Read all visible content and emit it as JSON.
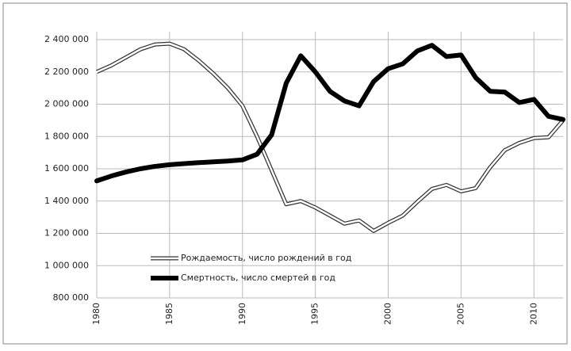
{
  "chart_data": {
    "type": "line",
    "x": [
      1980,
      1981,
      1982,
      1983,
      1984,
      1985,
      1986,
      1987,
      1988,
      1989,
      1990,
      1991,
      1992,
      1993,
      1994,
      1995,
      1996,
      1997,
      1998,
      1999,
      2000,
      2001,
      2002,
      2003,
      2004,
      2005,
      2006,
      2007,
      2008,
      2009,
      2010,
      2011,
      2012
    ],
    "series": [
      {
        "name": "Рождаемость, число рождений в год",
        "color": "#ffffff",
        "values": [
          2200000,
          2240000,
          2290000,
          2340000,
          2370000,
          2375000,
          2340000,
          2270000,
          2190000,
          2100000,
          1990000,
          1800000,
          1590000,
          1380000,
          1400000,
          1360000,
          1310000,
          1260000,
          1280000,
          1215000,
          1265000,
          1310000,
          1395000,
          1475000,
          1500000,
          1460000,
          1480000,
          1610000,
          1715000,
          1760000,
          1790000,
          1795000,
          1900000
        ]
      },
      {
        "name": "Смертность, число смертей в год",
        "color": "#000000",
        "values": [
          1525000,
          1555000,
          1580000,
          1600000,
          1615000,
          1625000,
          1632000,
          1638000,
          1643000,
          1648000,
          1655000,
          1690000,
          1810000,
          2130000,
          2300000,
          2200000,
          2080000,
          2020000,
          1990000,
          2140000,
          2220000,
          2250000,
          2330000,
          2365000,
          2295000,
          2305000,
          2165000,
          2080000,
          2075000,
          2010000,
          2030000,
          1925000,
          1905000
        ]
      }
    ],
    "xlim": [
      1980,
      2012
    ],
    "xticks": [
      1980,
      1985,
      1990,
      1995,
      2000,
      2005,
      2010
    ],
    "ylim": [
      800000,
      2400000
    ],
    "yticks": [
      {
        "value": 800000,
        "label": "800 000"
      },
      {
        "value": 1000000,
        "label": "1 000 000"
      },
      {
        "value": 1200000,
        "label": "1 200 000"
      },
      {
        "value": 1400000,
        "label": "1 400 000"
      },
      {
        "value": 1600000,
        "label": "1 600 000"
      },
      {
        "value": 1800000,
        "label": "1 800 000"
      },
      {
        "value": 2000000,
        "label": "2 000 000"
      },
      {
        "value": 2200000,
        "label": "2 200 000"
      },
      {
        "value": 2400000,
        "label": "2 400 000"
      }
    ],
    "grid": true,
    "legend": "lower left"
  }
}
